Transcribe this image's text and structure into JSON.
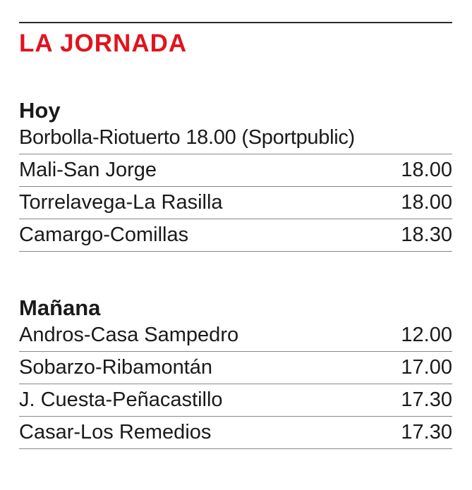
{
  "header": {
    "title": "LA JORNADA"
  },
  "sections": [
    {
      "heading": "Hoy",
      "matches": [
        {
          "teams": "Borbolla-Riotuerto",
          "time": "18.00",
          "broadcaster": "(Sportpublic)"
        },
        {
          "teams": "Mali-San Jorge",
          "time": "18.00"
        },
        {
          "teams": "Torrelavega-La Rasilla",
          "time": "18.00"
        },
        {
          "teams": "Camargo-Comillas",
          "time": "18.30"
        }
      ]
    },
    {
      "heading": "Mañana",
      "matches": [
        {
          "teams": "Andros-Casa Sampedro",
          "time": "12.00"
        },
        {
          "teams": "Sobarzo-Ribamontán",
          "time": "17.00"
        },
        {
          "teams": "J. Cuesta-Peñacastillo",
          "time": "17.30"
        },
        {
          "teams": "Casar-Los Remedios",
          "time": "17.30"
        }
      ]
    }
  ]
}
